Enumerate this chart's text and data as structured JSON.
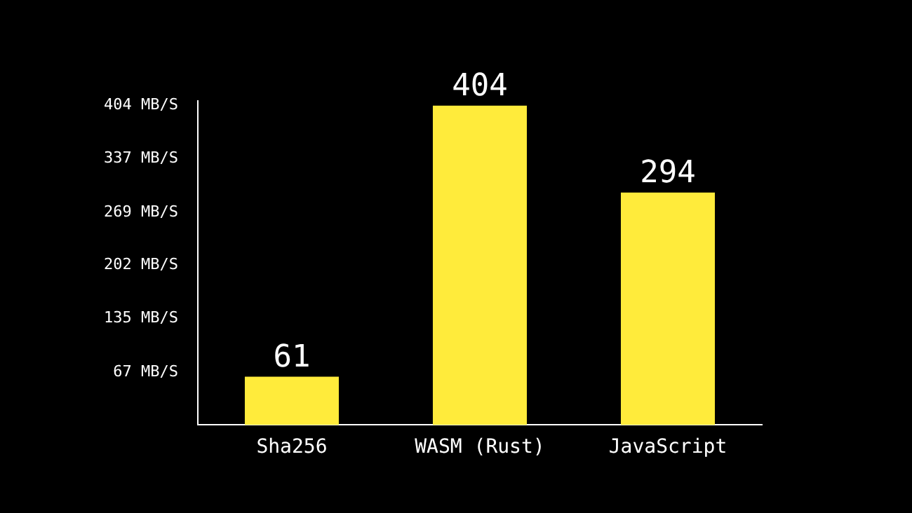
{
  "chart_data": {
    "type": "bar",
    "categories": [
      "Sha256",
      "WASM (Rust)",
      "JavaScript"
    ],
    "values": [
      61,
      404,
      294
    ],
    "color": "#ffeb3b",
    "ylim": [
      0,
      410
    ],
    "yticks": [
      {
        "value": 67,
        "label": "67 MB/S"
      },
      {
        "value": 135,
        "label": "135 MB/S"
      },
      {
        "value": 202,
        "label": "202 MB/S"
      },
      {
        "value": 269,
        "label": "269 MB/S"
      },
      {
        "value": 337,
        "label": "337 MB/S"
      },
      {
        "value": 404,
        "label": "404 MB/S"
      }
    ],
    "data_labels": true,
    "grid": false,
    "legend": false
  }
}
